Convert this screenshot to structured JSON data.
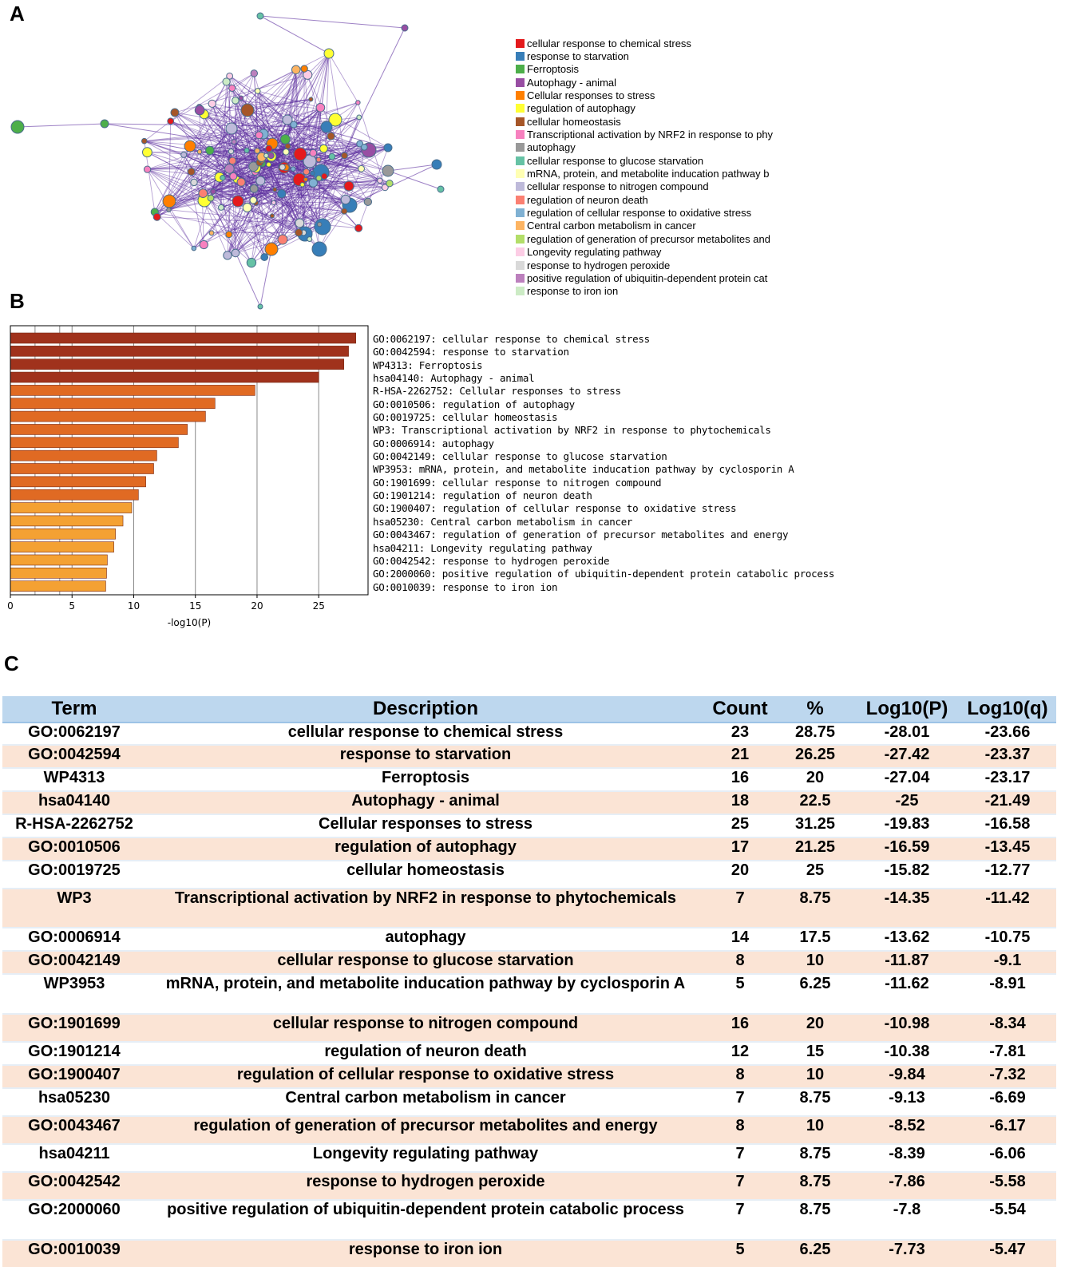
{
  "panels": {
    "a": "A",
    "b": "B",
    "c": "C"
  },
  "network": {
    "legend": [
      {
        "label": "cellular response to chemical stress",
        "color": "#e41a1c"
      },
      {
        "label": "response to starvation",
        "color": "#377eb8"
      },
      {
        "label": "Ferroptosis",
        "color": "#4daf4a"
      },
      {
        "label": "Autophagy - animal",
        "color": "#984ea3"
      },
      {
        "label": "Cellular responses to stress",
        "color": "#ff7f00"
      },
      {
        "label": "regulation of autophagy",
        "color": "#ffff33"
      },
      {
        "label": "cellular homeostasis",
        "color": "#a65628"
      },
      {
        "label": "Transcriptional activation by NRF2 in response to phy",
        "color": "#f781bf"
      },
      {
        "label": "autophagy",
        "color": "#999999"
      },
      {
        "label": "cellular response to glucose starvation",
        "color": "#66c2a5"
      },
      {
        "label": "mRNA, protein, and metabolite inducation pathway b",
        "color": "#ffffb3"
      },
      {
        "label": "cellular response to nitrogen compound",
        "color": "#bebada"
      },
      {
        "label": "regulation of neuron death",
        "color": "#fb8072"
      },
      {
        "label": "regulation of cellular response to oxidative stress",
        "color": "#80b1d3"
      },
      {
        "label": "Central carbon metabolism in cancer",
        "color": "#fdb462"
      },
      {
        "label": "regulation of generation of precursor metabolites and",
        "color": "#b3de69"
      },
      {
        "label": "Longevity regulating pathway",
        "color": "#fccde5"
      },
      {
        "label": "response to hydrogen peroxide",
        "color": "#d9d9d9"
      },
      {
        "label": "positive regulation of ubiquitin-dependent protein cat",
        "color": "#bc80bd"
      },
      {
        "label": "response to iron ion",
        "color": "#ccebc5"
      }
    ],
    "edge_color": "#5b2d9e"
  },
  "chart_data": {
    "type": "bar",
    "orientation": "horizontal",
    "xlabel": "-log10(P)",
    "xlim": [
      0,
      29
    ],
    "xticks": [
      0,
      5,
      10,
      15,
      20,
      25
    ],
    "categories": [
      "GO:0062197: cellular response to chemical stress",
      "GO:0042594: response to starvation",
      "WP4313: Ferroptosis",
      "hsa04140: Autophagy - animal",
      "R-HSA-2262752: Cellular responses to stress",
      "GO:0010506: regulation of autophagy",
      "GO:0019725: cellular homeostasis",
      "WP3: Transcriptional activation by NRF2 in response to phytochemicals",
      "GO:0006914: autophagy",
      "GO:0042149: cellular response to glucose starvation",
      "WP3953: mRNA, protein, and metabolite inducation pathway by cyclosporin A",
      "GO:1901699: cellular response to nitrogen compound",
      "GO:1901214: regulation of neuron death",
      "GO:1900407: regulation of cellular response to oxidative stress",
      "hsa05230: Central carbon metabolism in cancer",
      "GO:0043467: regulation of generation of precursor metabolites and energy",
      "hsa04211: Longevity regulating pathway",
      "GO:0042542: response to hydrogen peroxide",
      "GO:2000060: positive regulation of ubiquitin-dependent protein catabolic process",
      "GO:0010039: response to iron ion"
    ],
    "values": [
      28.01,
      27.42,
      27.04,
      25,
      19.83,
      16.59,
      15.82,
      14.35,
      13.62,
      11.87,
      11.62,
      10.98,
      10.38,
      9.84,
      9.13,
      8.52,
      8.39,
      7.86,
      7.8,
      7.73
    ],
    "colors": [
      "#a0321c",
      "#a0321c",
      "#a0321c",
      "#a0321c",
      "#e06a23",
      "#e06a23",
      "#e06a23",
      "#e06a23",
      "#e06a23",
      "#e06a23",
      "#e06a23",
      "#e06a23",
      "#e06a23",
      "#f4a133",
      "#f4a133",
      "#f4a133",
      "#f4a133",
      "#f4a133",
      "#f4a133",
      "#f4a133"
    ]
  },
  "table": {
    "headers": [
      "Term",
      "Description",
      "Count",
      "%",
      "Log10(P)",
      "Log10(q)"
    ],
    "rows": [
      {
        "term": "GO:0062197",
        "description": "cellular response to chemical stress",
        "count": "23",
        "percent": "28.75",
        "log_p": "-28.01",
        "log_q": "-23.66"
      },
      {
        "term": "GO:0042594",
        "description": "response to starvation",
        "count": "21",
        "percent": "26.25",
        "log_p": "-27.42",
        "log_q": "-23.37"
      },
      {
        "term": "WP4313",
        "description": "Ferroptosis",
        "count": "16",
        "percent": "20",
        "log_p": "-27.04",
        "log_q": "-23.17"
      },
      {
        "term": "hsa04140",
        "description": "Autophagy - animal",
        "count": "18",
        "percent": "22.5",
        "log_p": "-25",
        "log_q": "-21.49"
      },
      {
        "term": "R-HSA-2262752",
        "description": "Cellular responses to stress",
        "count": "25",
        "percent": "31.25",
        "log_p": "-19.83",
        "log_q": "-16.58"
      },
      {
        "term": "GO:0010506",
        "description": "regulation of autophagy",
        "count": "17",
        "percent": "21.25",
        "log_p": "-16.59",
        "log_q": "-13.45"
      },
      {
        "term": "GO:0019725",
        "description": "cellular homeostasis",
        "count": "20",
        "percent": "25",
        "log_p": "-15.82",
        "log_q": "-12.77"
      },
      {
        "term": "WP3",
        "description": "Transcriptional activation by NRF2 in response to phytochemicals",
        "count": "7",
        "percent": "8.75",
        "log_p": "-14.35",
        "log_q": "-11.42"
      },
      {
        "term": "GO:0006914",
        "description": "autophagy",
        "count": "14",
        "percent": "17.5",
        "log_p": "-13.62",
        "log_q": "-10.75"
      },
      {
        "term": "GO:0042149",
        "description": "cellular response to glucose starvation",
        "count": "8",
        "percent": "10",
        "log_p": "-11.87",
        "log_q": "-9.1"
      },
      {
        "term": "WP3953",
        "description": "mRNA, protein, and metabolite inducation pathway by cyclosporin A",
        "count": "5",
        "percent": "6.25",
        "log_p": "-11.62",
        "log_q": "-8.91"
      },
      {
        "term": "GO:1901699",
        "description": "cellular response to nitrogen compound",
        "count": "16",
        "percent": "20",
        "log_p": "-10.98",
        "log_q": "-8.34"
      },
      {
        "term": "GO:1901214",
        "description": "regulation of neuron death",
        "count": "12",
        "percent": "15",
        "log_p": "-10.38",
        "log_q": "-7.81"
      },
      {
        "term": "GO:1900407",
        "description": "regulation of cellular response to oxidative stress",
        "count": "8",
        "percent": "10",
        "log_p": "-9.84",
        "log_q": "-7.32"
      },
      {
        "term": "hsa05230",
        "description": "Central carbon metabolism in cancer",
        "count": "7",
        "percent": "8.75",
        "log_p": "-9.13",
        "log_q": "-6.69"
      },
      {
        "term": "GO:0043467",
        "description": "regulation of generation of precursor metabolites and energy",
        "count": "8",
        "percent": "10",
        "log_p": "-8.52",
        "log_q": "-6.17"
      },
      {
        "term": "hsa04211",
        "description": "Longevity regulating pathway",
        "count": "7",
        "percent": "8.75",
        "log_p": "-8.39",
        "log_q": "-6.06"
      },
      {
        "term": "GO:0042542",
        "description": "response to hydrogen peroxide",
        "count": "7",
        "percent": "8.75",
        "log_p": "-7.86",
        "log_q": "-5.58"
      },
      {
        "term": "GO:2000060",
        "description": "positive regulation of ubiquitin-dependent protein catabolic process",
        "count": "7",
        "percent": "8.75",
        "log_p": "-7.8",
        "log_q": "-5.54"
      },
      {
        "term": "GO:0010039",
        "description": "response to iron ion",
        "count": "5",
        "percent": "6.25",
        "log_p": "-7.73",
        "log_q": "-5.47"
      }
    ]
  }
}
